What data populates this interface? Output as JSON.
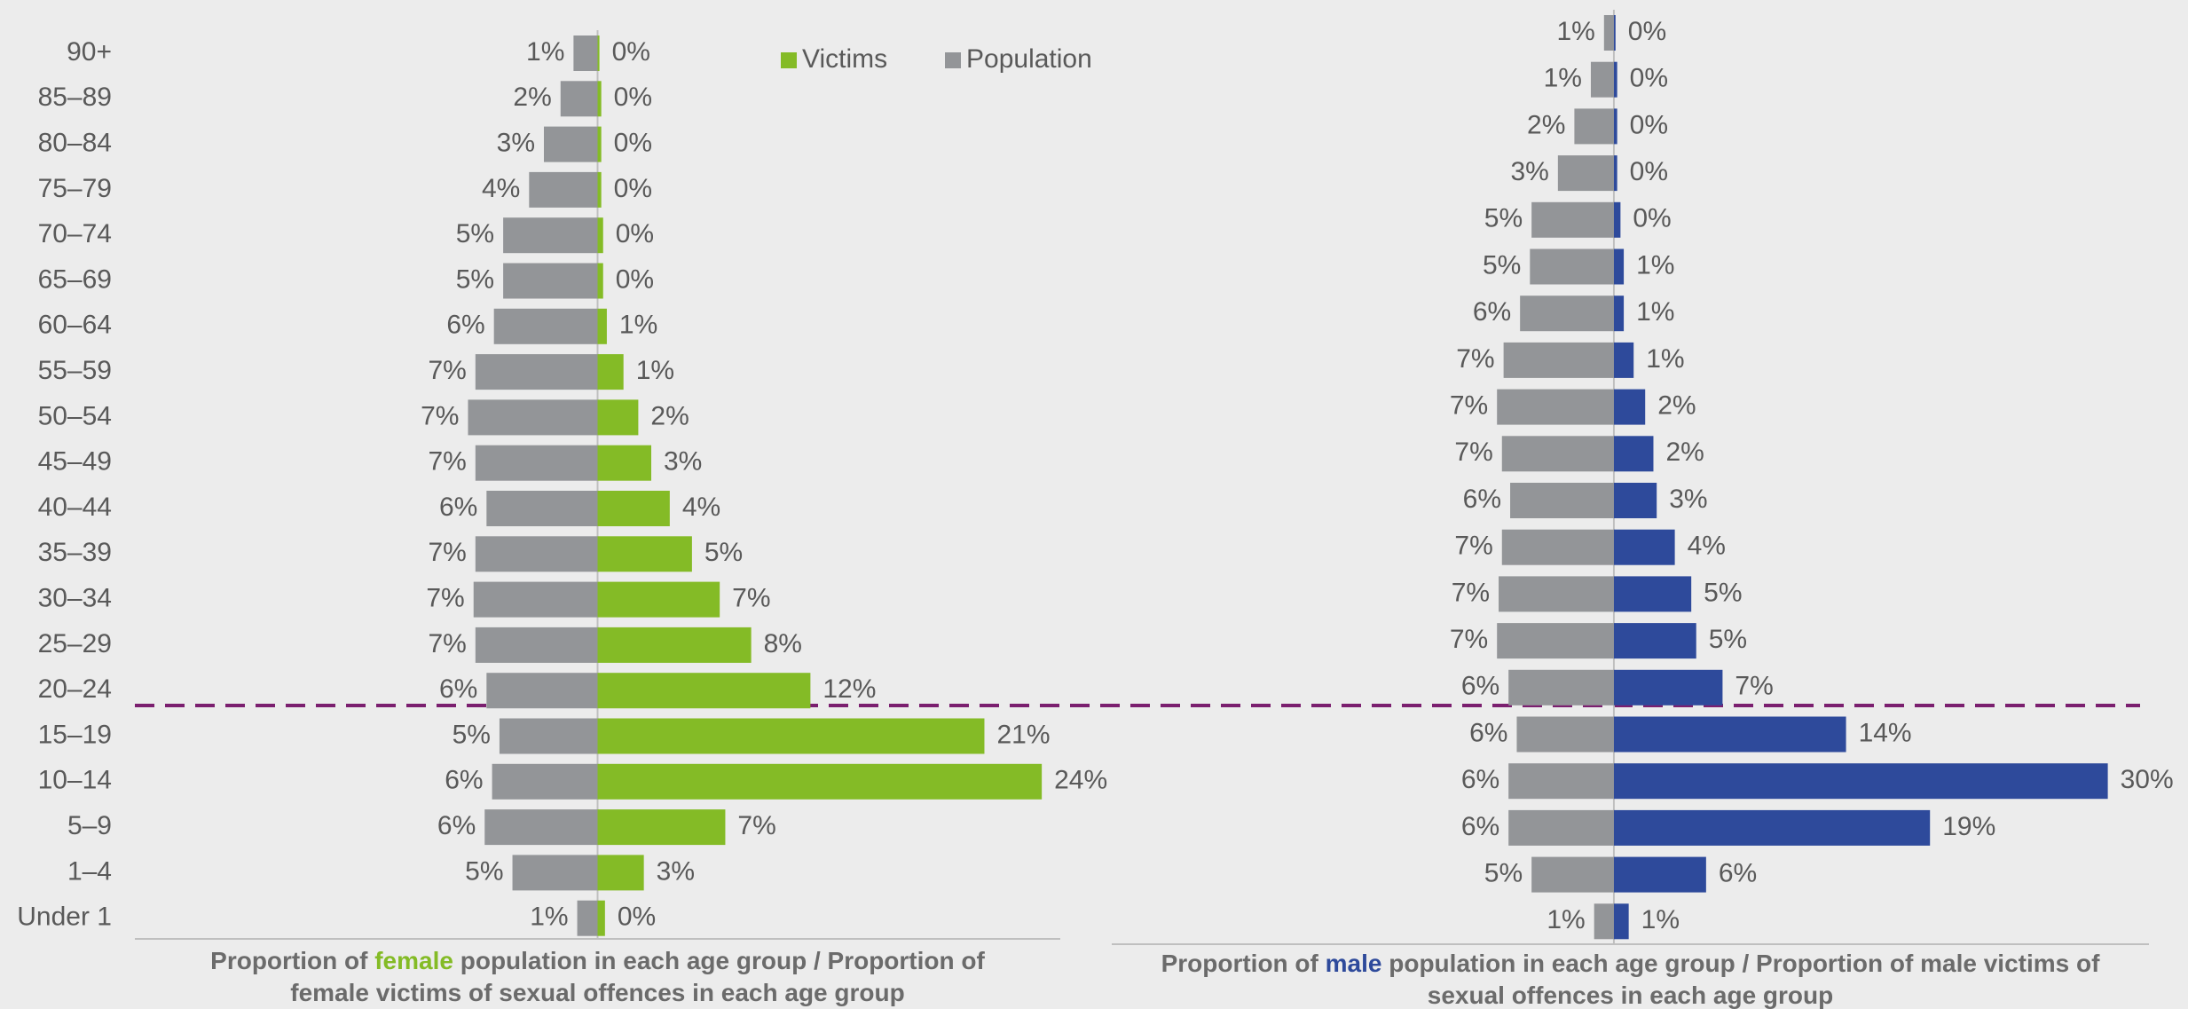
{
  "chart_data": [
    {
      "type": "bar",
      "orientation": "horizontal",
      "categories": [
        "90+",
        "85–89",
        "80–84",
        "75–79",
        "70–74",
        "65–69",
        "60–64",
        "55–59",
        "50–54",
        "45–49",
        "40–44",
        "35–39",
        "30–34",
        "25–29",
        "20–24",
        "15–19",
        "10–14",
        "5–9",
        "1–4",
        "Under 1"
      ],
      "series": [
        {
          "name": "Population",
          "color": "#939598",
          "values": [
            1.3,
            2.0,
            2.9,
            3.7,
            5.1,
            5.1,
            5.6,
            6.6,
            7.0,
            6.6,
            6.0,
            6.6,
            6.7,
            6.6,
            6.0,
            5.3,
            5.7,
            6.1,
            4.6,
            1.1
          ],
          "value_labels": [
            "1%",
            "2%",
            "3%",
            "4%",
            "5%",
            "5%",
            "6%",
            "7%",
            "7%",
            "7%",
            "6%",
            "7%",
            "7%",
            "7%",
            "6%",
            "5%",
            "6%",
            "6%",
            "5%",
            "1%"
          ]
        },
        {
          "name": "Victims",
          "color": "#84bb26",
          "values": [
            0.1,
            0.2,
            0.2,
            0.2,
            0.3,
            0.3,
            0.5,
            1.4,
            2.2,
            2.9,
            3.9,
            5.1,
            6.6,
            8.3,
            11.5,
            20.9,
            24.0,
            6.9,
            2.5,
            0.4
          ],
          "value_labels": [
            "0%",
            "0%",
            "0%",
            "0%",
            "0%",
            "0%",
            "1%",
            "1%",
            "2%",
            "3%",
            "4%",
            "5%",
            "7%",
            "8%",
            "12%",
            "21%",
            "24%",
            "7%",
            "3%",
            "0%"
          ]
        }
      ],
      "xlim": [
        -25,
        25
      ],
      "xlabel_lines": [
        [
          "Proportion of ",
          "female",
          " population in each age group / Proportion of"
        ],
        [
          "female victims of sexual offences in each age group"
        ]
      ]
    },
    {
      "type": "bar",
      "orientation": "horizontal",
      "series": [
        {
          "color": "#939598",
          "values": [
            0.6,
            1.4,
            2.4,
            3.4,
            5.0,
            5.1,
            5.7,
            6.7,
            7.1,
            6.8,
            6.3,
            6.8,
            7.0,
            7.1,
            6.4,
            5.9,
            6.4,
            6.4,
            5.0,
            1.2
          ],
          "value_labels": [
            "1%",
            "1%",
            "2%",
            "3%",
            "5%",
            "5%",
            "6%",
            "7%",
            "7%",
            "7%",
            "6%",
            "7%",
            "7%",
            "7%",
            "6%",
            "6%",
            "6%",
            "6%",
            "5%",
            "1%"
          ]
        },
        {
          "color": "#2e4a9b",
          "values": [
            0.1,
            0.2,
            0.2,
            0.2,
            0.4,
            0.6,
            0.6,
            1.2,
            1.9,
            2.4,
            2.6,
            3.7,
            4.7,
            5.0,
            6.6,
            14.1,
            30.0,
            19.2,
            5.6,
            0.9
          ],
          "value_labels": [
            "0%",
            "0%",
            "0%",
            "0%",
            "0%",
            "1%",
            "1%",
            "1%",
            "2%",
            "2%",
            "3%",
            "4%",
            "5%",
            "5%",
            "7%",
            "14%",
            "30%",
            "19%",
            "6%",
            "1%"
          ]
        }
      ],
      "xlim": [
        -30.5,
        32.5
      ],
      "xlabel_lines": [
        [
          "Proportion of ",
          "male",
          " population in each age group / Proportion of male victims of"
        ],
        [
          "sexual offences in each age group"
        ]
      ]
    }
  ]
}
